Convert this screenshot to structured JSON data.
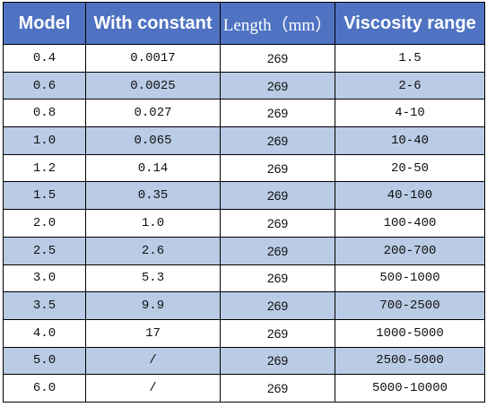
{
  "table": {
    "header": [
      "Model",
      "With constant",
      "Length（mm）",
      "Viscosity range"
    ],
    "rows": [
      [
        "0.4",
        "0.0017",
        "269",
        "1.5"
      ],
      [
        "0.6",
        "0.0025",
        "269",
        "2-6"
      ],
      [
        "0.8",
        "0.027",
        "269",
        "4-10"
      ],
      [
        "1.0",
        "0.065",
        "269",
        "10-40"
      ],
      [
        "1.2",
        "0.14",
        "269",
        "20-50"
      ],
      [
        "1.5",
        "0.35",
        "269",
        "40-100"
      ],
      [
        "2.0",
        "1.0",
        "269",
        "100-400"
      ],
      [
        "2.5",
        "2.6",
        "269",
        "200-700"
      ],
      [
        "3.0",
        "5.3",
        "269",
        "500-1000"
      ],
      [
        "3.5",
        "9.9",
        "269",
        "700-2500"
      ],
      [
        "4.0",
        "17",
        "269",
        "1000-5000"
      ],
      [
        "5.0",
        "/",
        "269",
        "2500-5000"
      ],
      [
        "6.0",
        "/",
        "269",
        "5000-10000"
      ]
    ]
  }
}
